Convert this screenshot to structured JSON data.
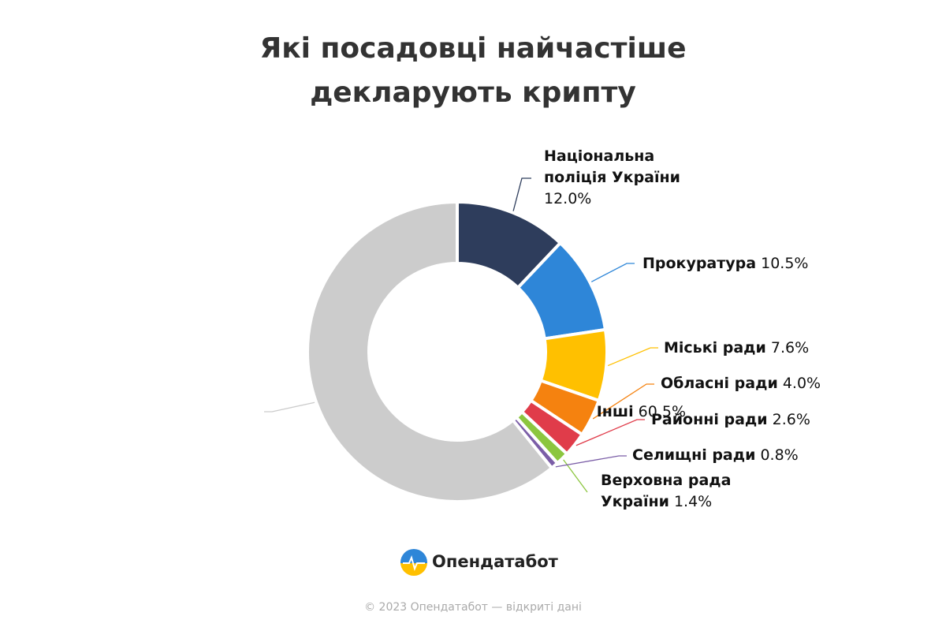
{
  "chart_data": {
    "type": "donut",
    "title": "Які посадовці найчастіше декларують крипту",
    "categories": [
      "Національна поліція України",
      "Прокуратура",
      "Міські ради",
      "Обласні ради",
      "Районні ради",
      "Верховна рада України",
      "Селищні ради",
      "Інші"
    ],
    "values": [
      12.0,
      10.5,
      7.6,
      4.0,
      2.6,
      1.4,
      0.8,
      60.5
    ],
    "value_labels": [
      "12.0%",
      "10.5%",
      "7.6%",
      "4.0%",
      "2.6%",
      "1.4%",
      "0.8%",
      "60.5%"
    ],
    "colors": [
      "#2e3d5c",
      "#2e86d8",
      "#ffc000",
      "#f5820f",
      "#e03c4a",
      "#8cc63f",
      "#7b5ea7",
      "#cccccc"
    ]
  },
  "brand": "Опендатабот",
  "footer": "© 2023 Опендатабот — відкриті дані"
}
